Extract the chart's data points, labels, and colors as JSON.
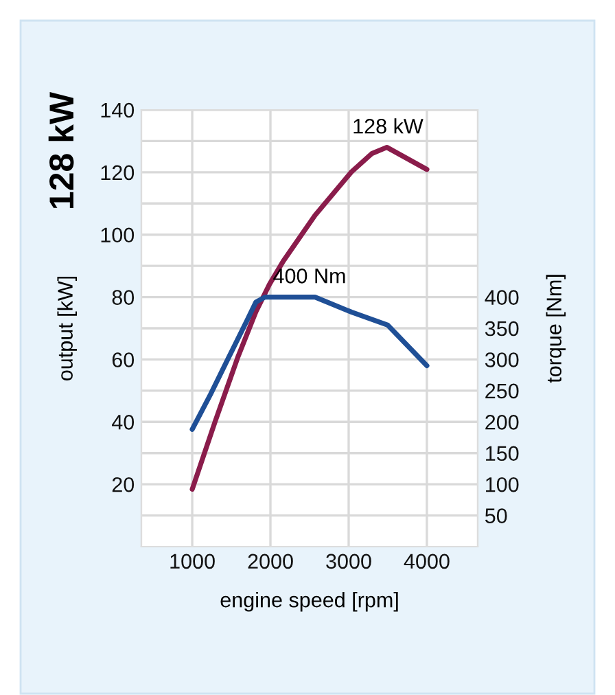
{
  "chart_data": {
    "type": "line",
    "title": "128 kW",
    "xlabel": "engine speed [rpm]",
    "ylabel": "output [kW]",
    "y2label": "torque [Nm]",
    "series": [
      {
        "color": "#8a1c4b",
        "x": [
          1000,
          1291,
          1581,
          1814,
          1988,
          2163,
          2570,
          3035,
          3296,
          3488,
          4000
        ],
        "values": [
          18.4,
          40,
          60.6,
          75.3,
          84.1,
          91.5,
          106.2,
          120.1,
          126,
          128,
          120.9
        ]
      },
      {
        "color": "#1f4f96",
        "axis": "y2",
        "x": [
          1000,
          1233,
          1465,
          1698,
          1814,
          1930,
          2570,
          3035,
          3500,
          4000
        ],
        "values": [
          188,
          244,
          303,
          362,
          392,
          400,
          400,
          376,
          355,
          290
        ]
      }
    ],
    "annotations": [
      {
        "text": "128 kW",
        "x": 3500,
        "y": 128
      },
      {
        "text": "400 Nm",
        "x": 2500,
        "y": 80
      }
    ],
    "xlim": [
      350,
      4650
    ],
    "xticks": [
      1000,
      2000,
      3000,
      4000
    ],
    "ylim": [
      0,
      140
    ],
    "yticks": [
      {
        "value": 10,
        "label": null
      },
      20,
      {
        "value": 30,
        "label": null
      },
      40,
      {
        "value": 50,
        "label": null
      },
      60,
      {
        "value": 70,
        "label": null
      },
      80,
      {
        "value": 90,
        "label": null
      },
      100,
      {
        "value": 110,
        "label": null
      },
      120,
      {
        "value": 130,
        "label": null
      },
      140
    ],
    "y2lim": [
      0,
      700
    ],
    "y2ticks": [
      50,
      100,
      150,
      200,
      250,
      300,
      350,
      400
    ],
    "grid": true,
    "marker": "none",
    "line_style": "solid"
  }
}
